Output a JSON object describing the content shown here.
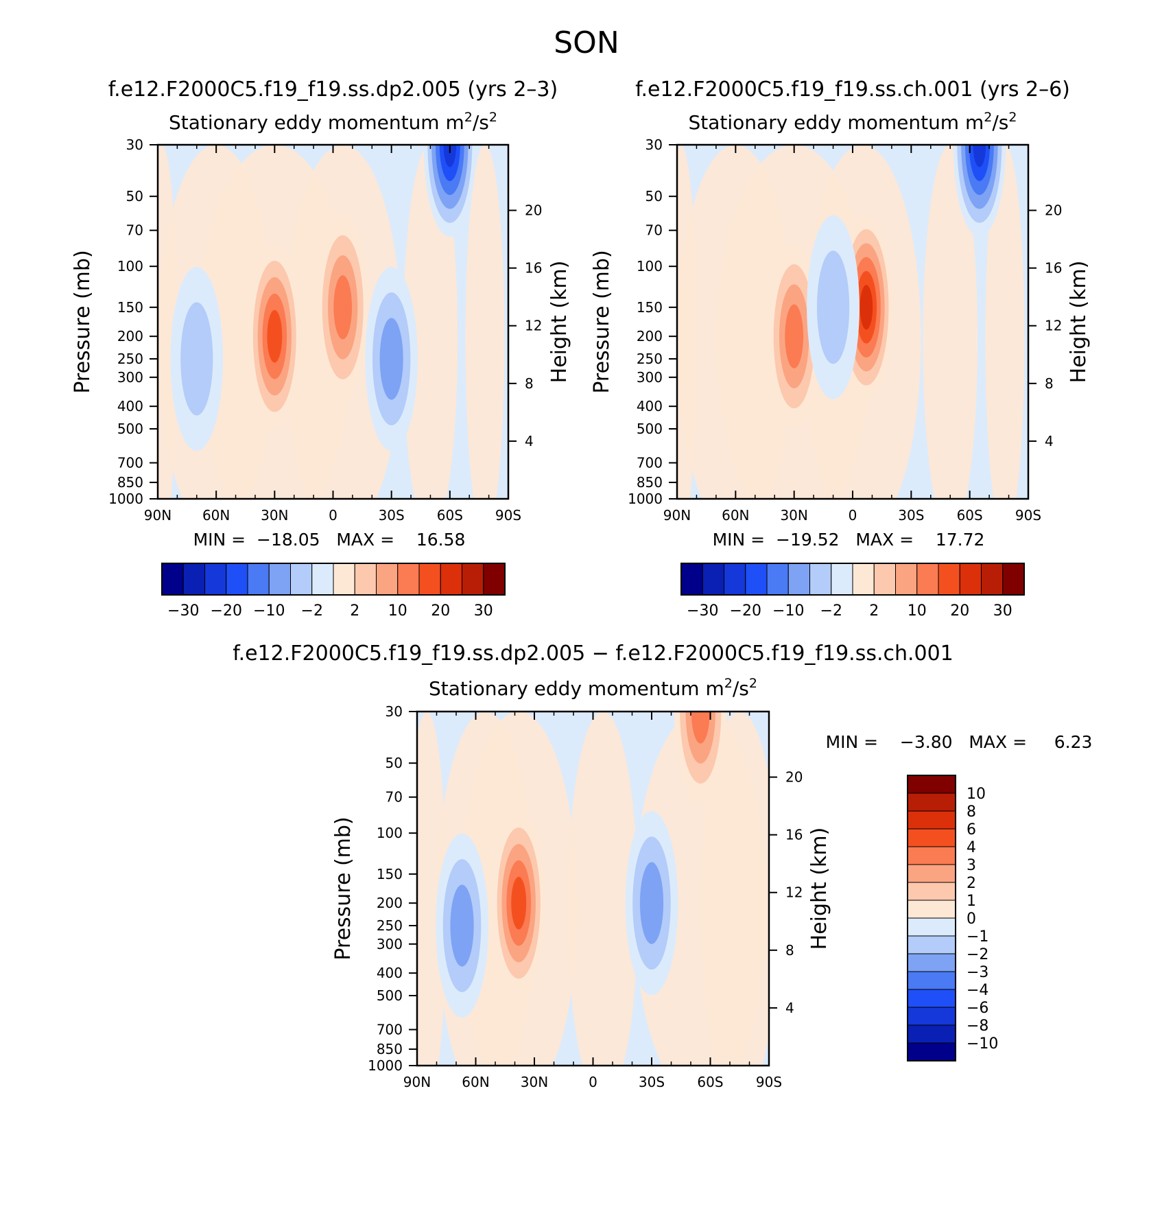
{
  "figure_title": "SON",
  "chart_data": [
    {
      "type": "heatmap",
      "title": "f.e12.F2000C5.f19_f19.ss.dp2.005 (yrs 2–3)",
      "subtitle": "Stationary eddy momentum",
      "units_base": "m",
      "units_exp1": "2",
      "units_sep": "/s",
      "units_exp2": "2",
      "xlabel": "",
      "ylabel": "Pressure (mb)",
      "y2label": "Height (km)",
      "x_ticks": [
        "90N",
        "60N",
        "30N",
        "0",
        "30S",
        "60S",
        "90S"
      ],
      "y_ticks": [
        "30",
        "50",
        "70",
        "100",
        "150",
        "200",
        "250",
        "300",
        "400",
        "500",
        "700",
        "850",
        "1000"
      ],
      "y2_ticks": [
        "20",
        "16",
        "12",
        "8",
        "4"
      ],
      "stats_text": "MIN =  −18.05   MAX =    16.58",
      "colorbar": {
        "orientation": "horizontal",
        "colors": [
          "#00008b",
          "#0a1fb4",
          "#1438d9",
          "#1f4ff7",
          "#4a7af4",
          "#7ea3f4",
          "#b3ccf9",
          "#dcebfb",
          "#fde8d6",
          "#fcc9ae",
          "#fba482",
          "#fb7b53",
          "#f4501f",
          "#dc300a",
          "#b81e05",
          "#800000"
        ],
        "labels": [
          "−30",
          "−20",
          "−10",
          "−2",
          "2",
          "10",
          "20",
          "30"
        ]
      },
      "features": [
        {
          "lat": 30,
          "p": 200,
          "value": 16.58,
          "sign": "positive"
        },
        {
          "lat": -5,
          "p": 150,
          "value": 14.0,
          "sign": "positive"
        },
        {
          "lat": -60,
          "p": 30,
          "value": -18.05,
          "sign": "negative"
        },
        {
          "lat": -30,
          "p": 250,
          "value": -8.0,
          "sign": "negative"
        },
        {
          "lat": 70,
          "p": 250,
          "value": -4.0,
          "sign": "negative"
        }
      ]
    },
    {
      "type": "heatmap",
      "title": "f.e12.F2000C5.f19_f19.ss.ch.001 (yrs 2–6)",
      "subtitle": "Stationary eddy momentum",
      "units_base": "m",
      "units_exp1": "2",
      "units_sep": "/s",
      "units_exp2": "2",
      "xlabel": "",
      "ylabel": "Pressure (mb)",
      "y2label": "Height (km)",
      "x_ticks": [
        "90N",
        "60N",
        "30N",
        "0",
        "30S",
        "60S",
        "90S"
      ],
      "y_ticks": [
        "30",
        "50",
        "70",
        "100",
        "150",
        "200",
        "250",
        "300",
        "400",
        "500",
        "700",
        "850",
        "1000"
      ],
      "y2_ticks": [
        "20",
        "16",
        "12",
        "8",
        "4"
      ],
      "stats_text": "MIN =  −19.52   MAX =    17.72",
      "colorbar": {
        "orientation": "horizontal",
        "colors": [
          "#00008b",
          "#0a1fb4",
          "#1438d9",
          "#1f4ff7",
          "#4a7af4",
          "#7ea3f4",
          "#b3ccf9",
          "#dcebfb",
          "#fde8d6",
          "#fcc9ae",
          "#fba482",
          "#fb7b53",
          "#f4501f",
          "#dc300a",
          "#b81e05",
          "#800000"
        ],
        "labels": [
          "−30",
          "−20",
          "−10",
          "−2",
          "2",
          "10",
          "20",
          "30"
        ]
      },
      "features": [
        {
          "lat": 30,
          "p": 200,
          "value": 14.0,
          "sign": "positive"
        },
        {
          "lat": -7,
          "p": 150,
          "value": 17.72,
          "sign": "positive"
        },
        {
          "lat": -65,
          "p": 30,
          "value": -19.52,
          "sign": "negative"
        },
        {
          "lat": 10,
          "p": 150,
          "value": -5.0,
          "sign": "negative"
        }
      ]
    },
    {
      "type": "heatmap",
      "title": "f.e12.F2000C5.f19_f19.ss.dp2.005 − f.e12.F2000C5.f19_f19.ss.ch.001",
      "subtitle": "Stationary eddy momentum",
      "units_base": "m",
      "units_exp1": "2",
      "units_sep": "/s",
      "units_exp2": "2",
      "xlabel": "",
      "ylabel": "Pressure (mb)",
      "y2label": "Height (km)",
      "x_ticks": [
        "90N",
        "60N",
        "30N",
        "0",
        "30S",
        "60S",
        "90S"
      ],
      "y_ticks": [
        "30",
        "50",
        "70",
        "100",
        "150",
        "200",
        "250",
        "300",
        "400",
        "500",
        "700",
        "850",
        "1000"
      ],
      "y2_ticks": [
        "20",
        "16",
        "12",
        "8",
        "4"
      ],
      "stats_text": "MIN =    −3.80   MAX =     6.23",
      "colorbar": {
        "orientation": "vertical",
        "colors": [
          "#00008b",
          "#0a1fb4",
          "#1438d9",
          "#1f4ff7",
          "#4a7af4",
          "#7ea3f4",
          "#b3ccf9",
          "#dcebfb",
          "#fde8d6",
          "#fcc9ae",
          "#fba482",
          "#fb7b53",
          "#f4501f",
          "#dc300a",
          "#b81e05",
          "#800000"
        ],
        "labels": [
          "10",
          "8",
          "6",
          "4",
          "3",
          "2",
          "1",
          "0",
          "−1",
          "−2",
          "−3",
          "−4",
          "−6",
          "−8",
          "−10"
        ]
      },
      "features": [
        {
          "lat": 38,
          "p": 200,
          "value": 6.23,
          "sign": "positive"
        },
        {
          "lat": -55,
          "p": 30,
          "value": 5.0,
          "sign": "positive"
        },
        {
          "lat": -30,
          "p": 200,
          "value": -3.8,
          "sign": "negative"
        },
        {
          "lat": 67,
          "p": 250,
          "value": -3.0,
          "sign": "negative"
        }
      ]
    }
  ]
}
